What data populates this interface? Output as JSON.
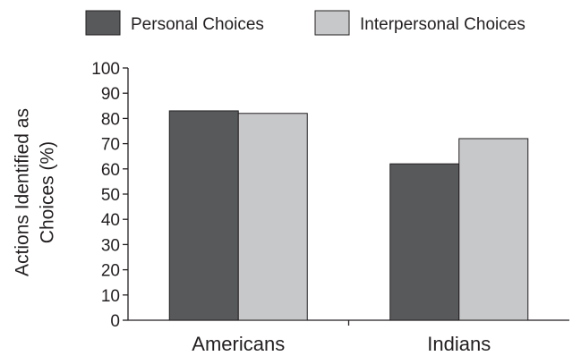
{
  "chart_data": {
    "type": "bar",
    "ylabel": "Actions Identified as Choices (%)",
    "ylabel_lines": [
      "Actions Identified as",
      "Choices (%)"
    ],
    "xlabel": "",
    "ylim": [
      0,
      100
    ],
    "yticks": [
      0,
      10,
      20,
      30,
      40,
      50,
      60,
      70,
      80,
      90,
      100
    ],
    "categories": [
      "Americans",
      "Indians"
    ],
    "series": [
      {
        "name": "Personal Choices",
        "values": [
          83,
          62
        ],
        "color": "#58595b"
      },
      {
        "name": "Interpersonal Choices",
        "values": [
          82,
          72
        ],
        "color": "#c7c8ca"
      }
    ],
    "legend_position": "top",
    "grid": false
  }
}
